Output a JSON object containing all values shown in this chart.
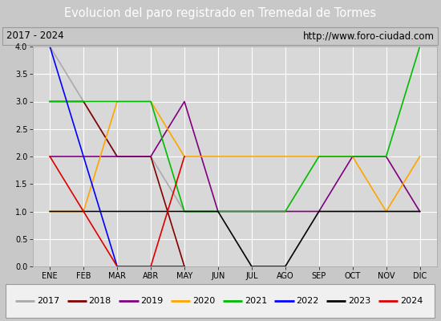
{
  "title": "Evolucion del paro registrado en Tremedal de Tormes",
  "subtitle_left": "2017 - 2024",
  "subtitle_right": "http://www.foro-ciudad.com",
  "xlabel_months": [
    "ENE",
    "FEB",
    "MAR",
    "ABR",
    "MAY",
    "JUN",
    "JUL",
    "AGO",
    "SEP",
    "OCT",
    "NOV",
    "DIC"
  ],
  "ylim": [
    0.0,
    4.0
  ],
  "yticks": [
    0.0,
    0.5,
    1.0,
    1.5,
    2.0,
    2.5,
    3.0,
    3.5,
    4.0
  ],
  "series": {
    "2017": {
      "color": "#aaaaaa",
      "months": [
        0,
        1,
        2,
        3,
        4,
        5,
        6,
        7,
        8,
        9,
        10,
        11
      ],
      "values": [
        4.0,
        3.0,
        2.0,
        2.0,
        1.0,
        1.0,
        1.0,
        1.0,
        1.0,
        1.0,
        1.0,
        1.0
      ]
    },
    "2018": {
      "color": "#800000",
      "months": [
        0,
        1,
        2,
        3,
        4
      ],
      "values": [
        3.0,
        3.0,
        2.0,
        2.0,
        0.0
      ]
    },
    "2019": {
      "color": "#800080",
      "months": [
        0,
        1,
        2,
        3,
        4,
        5,
        6,
        7,
        8,
        9,
        10,
        11
      ],
      "values": [
        2.0,
        2.0,
        2.0,
        2.0,
        3.0,
        1.0,
        1.0,
        1.0,
        1.0,
        2.0,
        2.0,
        1.0
      ]
    },
    "2020": {
      "color": "#ffa500",
      "months": [
        0,
        1,
        2,
        3,
        4,
        5,
        6,
        7,
        8,
        9,
        10,
        11
      ],
      "values": [
        1.0,
        1.0,
        3.0,
        3.0,
        2.0,
        2.0,
        2.0,
        2.0,
        2.0,
        2.0,
        1.0,
        2.0
      ]
    },
    "2021": {
      "color": "#00bb00",
      "months": [
        0,
        1,
        2,
        3,
        4,
        5,
        6,
        7,
        8,
        9,
        10,
        11
      ],
      "values": [
        3.0,
        3.0,
        3.0,
        3.0,
        1.0,
        1.0,
        1.0,
        1.0,
        2.0,
        2.0,
        2.0,
        4.0
      ]
    },
    "2022": {
      "color": "#0000ff",
      "months": [
        0,
        1,
        2,
        3,
        4
      ],
      "values": [
        4.0,
        2.0,
        0.0,
        0.0,
        0.0
      ]
    },
    "2023": {
      "color": "#000000",
      "months": [
        0,
        1,
        2,
        3,
        4,
        5,
        6,
        7,
        8,
        9,
        10,
        11
      ],
      "values": [
        1.0,
        1.0,
        1.0,
        1.0,
        1.0,
        1.0,
        0.0,
        0.0,
        1.0,
        1.0,
        1.0,
        1.0
      ]
    },
    "2024": {
      "color": "#dd0000",
      "months": [
        0,
        1,
        2,
        3,
        4
      ],
      "values": [
        2.0,
        1.0,
        0.0,
        0.0,
        2.0
      ]
    }
  },
  "legend_order": [
    "2017",
    "2018",
    "2019",
    "2020",
    "2021",
    "2022",
    "2023",
    "2024"
  ],
  "bg_outer": "#c8c8c8",
  "bg_title": "#4a7fd4",
  "bg_subtitle": "#e0e0e0",
  "bg_plot": "#d8d8d8",
  "title_color": "#ffffff",
  "grid_color": "#ffffff",
  "title_fontsize": 10.5,
  "subtitle_fontsize": 8.5,
  "tick_fontsize": 7,
  "legend_fontsize": 8
}
